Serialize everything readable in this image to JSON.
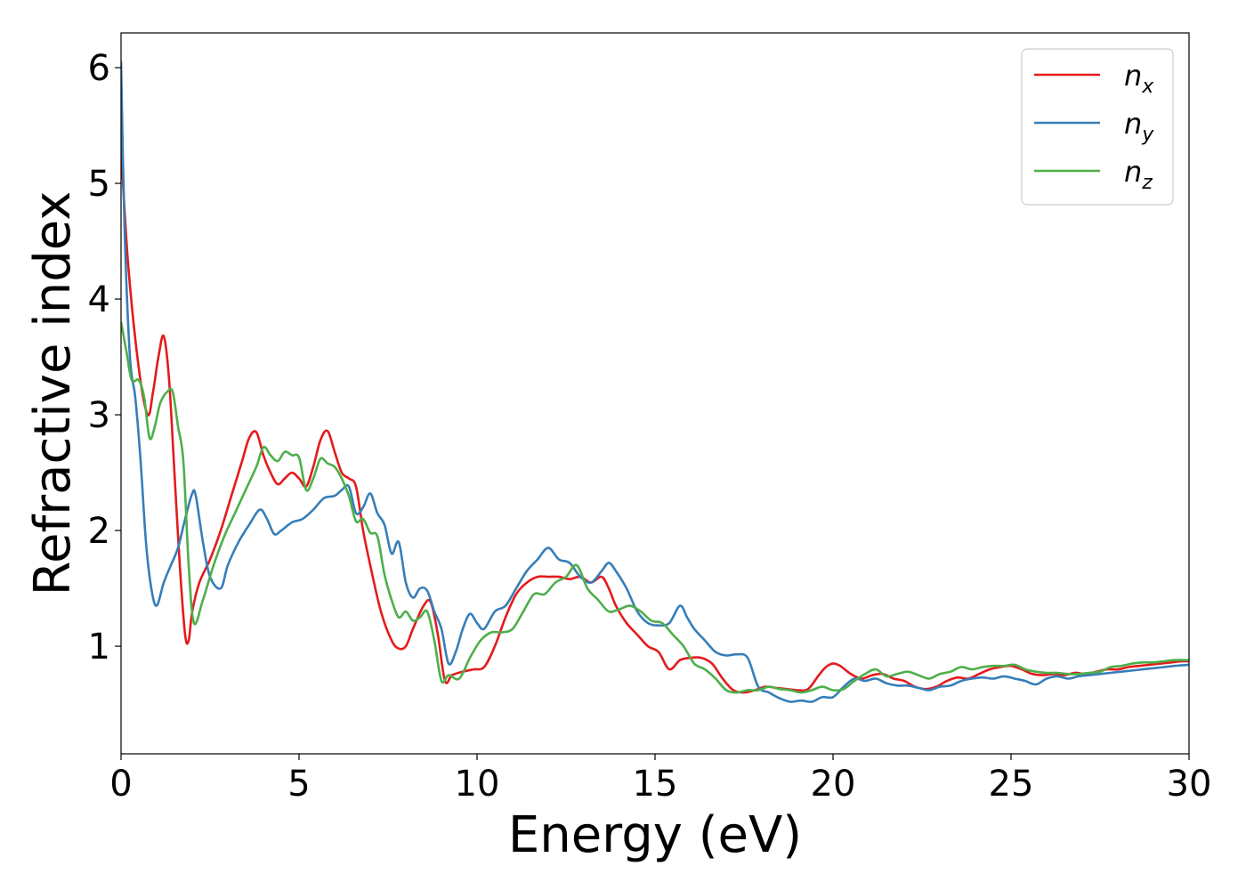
{
  "chart_data": {
    "type": "line",
    "title": "",
    "xlabel": "Energy (eV)",
    "ylabel": "Refractive index",
    "xlim": [
      0,
      30
    ],
    "ylim": [
      0.07,
      6.3
    ],
    "xticks": [
      0,
      5,
      10,
      15,
      20,
      25,
      30
    ],
    "yticks": [
      1,
      2,
      3,
      4,
      5,
      6
    ],
    "grid": false,
    "legend_position": "top-right",
    "series": [
      {
        "name": "n",
        "subscript": "x",
        "color": "#e41a1c",
        "x": [
          0,
          0.2,
          0.5,
          0.75,
          0.9,
          1.05,
          1.2,
          1.35,
          1.5,
          1.65,
          1.8,
          1.9,
          2.0,
          2.2,
          2.5,
          2.8,
          3.1,
          3.4,
          3.6,
          3.8,
          4.0,
          4.2,
          4.4,
          4.6,
          4.8,
          5.0,
          5.2,
          5.4,
          5.6,
          5.8,
          6.0,
          6.2,
          6.4,
          6.6,
          6.8,
          7.0,
          7.3,
          7.6,
          7.8,
          8.0,
          8.2,
          8.5,
          8.7,
          8.9,
          9.1,
          9.3,
          9.6,
          9.9,
          10.2,
          10.5,
          10.8,
          11.1,
          11.4,
          11.7,
          12.0,
          12.3,
          12.6,
          12.9,
          13.2,
          13.5,
          13.7,
          13.9,
          14.2,
          14.5,
          14.8,
          15.1,
          15.4,
          15.7,
          16.0,
          16.3,
          16.6,
          16.9,
          17.2,
          17.5,
          17.8,
          18.1,
          18.4,
          18.7,
          19.0,
          19.3,
          19.6,
          19.8,
          20.0,
          20.2,
          20.5,
          20.8,
          21.1,
          21.4,
          21.7,
          22.0,
          22.3,
          22.6,
          22.9,
          23.2,
          23.5,
          23.8,
          24.1,
          24.4,
          24.7,
          25.0,
          25.3,
          25.6,
          25.9,
          26.2,
          26.5,
          26.8,
          27.1,
          27.4,
          27.7,
          28.0,
          28.3,
          28.6,
          28.9,
          29.2,
          29.5,
          29.8,
          30.0
        ],
        "values": [
          5.3,
          4.3,
          3.4,
          3.0,
          3.2,
          3.5,
          3.68,
          3.3,
          2.5,
          1.7,
          1.1,
          1.05,
          1.3,
          1.55,
          1.75,
          2.0,
          2.3,
          2.6,
          2.8,
          2.85,
          2.65,
          2.5,
          2.4,
          2.45,
          2.5,
          2.45,
          2.38,
          2.55,
          2.78,
          2.86,
          2.68,
          2.5,
          2.45,
          2.38,
          2.0,
          1.7,
          1.3,
          1.05,
          0.98,
          1.0,
          1.15,
          1.35,
          1.38,
          1.1,
          0.7,
          0.75,
          0.78,
          0.8,
          0.82,
          1.0,
          1.25,
          1.45,
          1.55,
          1.6,
          1.6,
          1.6,
          1.58,
          1.6,
          1.55,
          1.6,
          1.5,
          1.35,
          1.2,
          1.1,
          1.0,
          0.95,
          0.8,
          0.88,
          0.9,
          0.9,
          0.85,
          0.72,
          0.62,
          0.6,
          0.62,
          0.65,
          0.64,
          0.63,
          0.62,
          0.63,
          0.75,
          0.82,
          0.85,
          0.83,
          0.76,
          0.72,
          0.75,
          0.76,
          0.72,
          0.7,
          0.65,
          0.63,
          0.65,
          0.7,
          0.73,
          0.72,
          0.76,
          0.8,
          0.82,
          0.83,
          0.8,
          0.76,
          0.75,
          0.76,
          0.75,
          0.77,
          0.76,
          0.78,
          0.8,
          0.8,
          0.82,
          0.83,
          0.84,
          0.85,
          0.86,
          0.87,
          0.87
        ]
      },
      {
        "name": "n",
        "subscript": "y",
        "color": "#377eb8",
        "x": [
          0,
          0.1,
          0.25,
          0.4,
          0.55,
          0.7,
          0.85,
          1.0,
          1.2,
          1.4,
          1.6,
          1.8,
          2.0,
          2.1,
          2.3,
          2.5,
          2.8,
          3.0,
          3.3,
          3.6,
          3.9,
          4.1,
          4.3,
          4.5,
          4.8,
          5.1,
          5.4,
          5.7,
          6.0,
          6.2,
          6.4,
          6.6,
          6.8,
          7.0,
          7.2,
          7.4,
          7.6,
          7.8,
          8.0,
          8.2,
          8.4,
          8.6,
          8.8,
          9.0,
          9.2,
          9.4,
          9.6,
          9.8,
          10.0,
          10.2,
          10.5,
          10.8,
          11.1,
          11.4,
          11.7,
          12.0,
          12.3,
          12.6,
          12.9,
          13.2,
          13.5,
          13.7,
          13.9,
          14.2,
          14.5,
          14.8,
          15.1,
          15.4,
          15.7,
          15.9,
          16.1,
          16.4,
          16.7,
          17.0,
          17.3,
          17.6,
          17.9,
          18.2,
          18.5,
          18.8,
          19.1,
          19.4,
          19.7,
          20.0,
          20.3,
          20.6,
          20.9,
          21.2,
          21.5,
          21.8,
          22.1,
          22.4,
          22.7,
          23.0,
          23.3,
          23.6,
          23.9,
          24.2,
          24.5,
          24.8,
          25.1,
          25.4,
          25.7,
          26.0,
          26.3,
          26.6,
          26.9,
          27.2,
          27.5,
          27.8,
          28.1,
          28.4,
          28.7,
          29.0,
          29.3,
          29.6,
          30.0
        ],
        "values": [
          6.05,
          4.6,
          3.5,
          3.15,
          2.6,
          1.9,
          1.5,
          1.35,
          1.55,
          1.7,
          1.85,
          2.1,
          2.32,
          2.3,
          1.9,
          1.6,
          1.5,
          1.7,
          1.9,
          2.05,
          2.18,
          2.1,
          1.97,
          2.0,
          2.07,
          2.1,
          2.18,
          2.28,
          2.3,
          2.35,
          2.38,
          2.15,
          2.2,
          2.32,
          2.15,
          2.05,
          1.8,
          1.9,
          1.55,
          1.42,
          1.5,
          1.48,
          1.3,
          1.15,
          0.85,
          0.95,
          1.15,
          1.28,
          1.2,
          1.15,
          1.3,
          1.35,
          1.5,
          1.65,
          1.75,
          1.85,
          1.75,
          1.72,
          1.6,
          1.55,
          1.65,
          1.72,
          1.65,
          1.5,
          1.3,
          1.2,
          1.18,
          1.2,
          1.35,
          1.25,
          1.15,
          1.05,
          0.95,
          0.92,
          0.93,
          0.9,
          0.65,
          0.6,
          0.55,
          0.52,
          0.53,
          0.52,
          0.56,
          0.56,
          0.65,
          0.72,
          0.7,
          0.72,
          0.68,
          0.66,
          0.66,
          0.64,
          0.62,
          0.65,
          0.66,
          0.7,
          0.72,
          0.73,
          0.72,
          0.74,
          0.72,
          0.7,
          0.67,
          0.72,
          0.74,
          0.72,
          0.74,
          0.75,
          0.76,
          0.77,
          0.78,
          0.79,
          0.8,
          0.81,
          0.82,
          0.83,
          0.84
        ]
      },
      {
        "name": "n",
        "subscript": "z",
        "color": "#4daf4a",
        "x": [
          0,
          0.15,
          0.3,
          0.5,
          0.65,
          0.8,
          0.95,
          1.1,
          1.3,
          1.45,
          1.6,
          1.75,
          1.9,
          2.05,
          2.3,
          2.6,
          2.9,
          3.2,
          3.5,
          3.8,
          4.0,
          4.2,
          4.4,
          4.6,
          4.8,
          5.0,
          5.2,
          5.4,
          5.6,
          5.8,
          6.0,
          6.2,
          6.4,
          6.6,
          6.8,
          7.0,
          7.2,
          7.4,
          7.6,
          7.8,
          8.0,
          8.2,
          8.4,
          8.6,
          8.8,
          9.0,
          9.2,
          9.5,
          9.8,
          10.1,
          10.4,
          10.7,
          11.0,
          11.3,
          11.6,
          11.9,
          12.2,
          12.5,
          12.8,
          13.1,
          13.4,
          13.7,
          14.0,
          14.3,
          14.6,
          14.9,
          15.2,
          15.5,
          15.8,
          16.1,
          16.4,
          16.7,
          17.0,
          17.3,
          17.6,
          17.9,
          18.2,
          18.5,
          18.8,
          19.1,
          19.4,
          19.7,
          20.0,
          20.3,
          20.6,
          20.9,
          21.2,
          21.5,
          21.8,
          22.1,
          22.4,
          22.7,
          23.0,
          23.3,
          23.6,
          23.9,
          24.2,
          24.5,
          24.8,
          25.1,
          25.4,
          25.7,
          26.0,
          26.3,
          26.6,
          26.9,
          27.2,
          27.5,
          27.8,
          28.1,
          28.4,
          28.7,
          29.0,
          29.3,
          29.6,
          30.0
        ],
        "values": [
          3.8,
          3.55,
          3.3,
          3.3,
          3.15,
          2.8,
          2.9,
          3.1,
          3.2,
          3.2,
          2.9,
          2.6,
          1.7,
          1.2,
          1.4,
          1.7,
          1.95,
          2.15,
          2.35,
          2.55,
          2.72,
          2.65,
          2.6,
          2.68,
          2.65,
          2.63,
          2.35,
          2.45,
          2.62,
          2.58,
          2.55,
          2.45,
          2.3,
          2.08,
          2.1,
          1.98,
          1.95,
          1.62,
          1.4,
          1.25,
          1.3,
          1.22,
          1.25,
          1.3,
          1.05,
          0.7,
          0.75,
          0.72,
          0.9,
          1.05,
          1.12,
          1.12,
          1.15,
          1.3,
          1.45,
          1.45,
          1.55,
          1.6,
          1.7,
          1.5,
          1.4,
          1.3,
          1.32,
          1.35,
          1.3,
          1.22,
          1.2,
          1.1,
          1.0,
          0.85,
          0.8,
          0.72,
          0.62,
          0.6,
          0.62,
          0.62,
          0.65,
          0.63,
          0.62,
          0.6,
          0.62,
          0.65,
          0.62,
          0.63,
          0.7,
          0.76,
          0.8,
          0.74,
          0.76,
          0.78,
          0.75,
          0.72,
          0.76,
          0.78,
          0.82,
          0.8,
          0.82,
          0.83,
          0.83,
          0.84,
          0.8,
          0.78,
          0.77,
          0.77,
          0.76,
          0.76,
          0.77,
          0.78,
          0.82,
          0.83,
          0.85,
          0.86,
          0.86,
          0.87,
          0.88,
          0.88
        ]
      }
    ]
  }
}
